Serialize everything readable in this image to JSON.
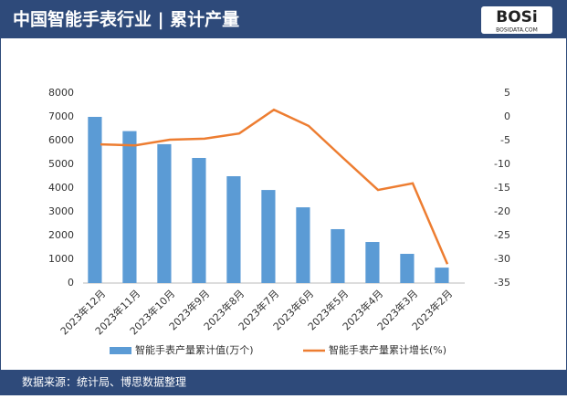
{
  "header": {
    "title": "中国智能手表行业 | 累计产量",
    "logo": "BOSi",
    "logo_sub": "BOSIDATA.COM"
  },
  "footer": {
    "source": "数据来源：统计局、博思数据整理"
  },
  "chart_data": {
    "type": "bar-line",
    "categories": [
      "2023年12月",
      "2023年11月",
      "2023年10月",
      "2023年9月",
      "2023年8月",
      "2023年7月",
      "2023年6月",
      "2023年5月",
      "2023年4月",
      "2023年3月",
      "2023年2月"
    ],
    "series": [
      {
        "name": "智能手表产量累计值(万个)",
        "color": "#5b9bd5",
        "type": "bar",
        "values": [
          7000,
          6400,
          5850,
          5270,
          4500,
          3920,
          3190,
          2270,
          1730,
          1230,
          650
        ]
      },
      {
        "name": "智能手表产量累计增长(%)",
        "color": "#ed7d31",
        "type": "line",
        "axis": "y2",
        "values": [
          -5.8,
          -6,
          -4.8,
          -4.6,
          -3.5,
          1.5,
          -1.9,
          -8.7,
          -15.4,
          -14,
          -31
        ]
      }
    ],
    "ylim": [
      0,
      8000
    ],
    "yticks": [
      0,
      1000,
      2000,
      3000,
      4000,
      5000,
      6000,
      7000,
      8000
    ],
    "y2lim": [
      -35,
      5
    ],
    "y2ticks": [
      -35,
      -30,
      -25,
      -20,
      -15,
      -10,
      -5,
      0,
      5
    ]
  }
}
